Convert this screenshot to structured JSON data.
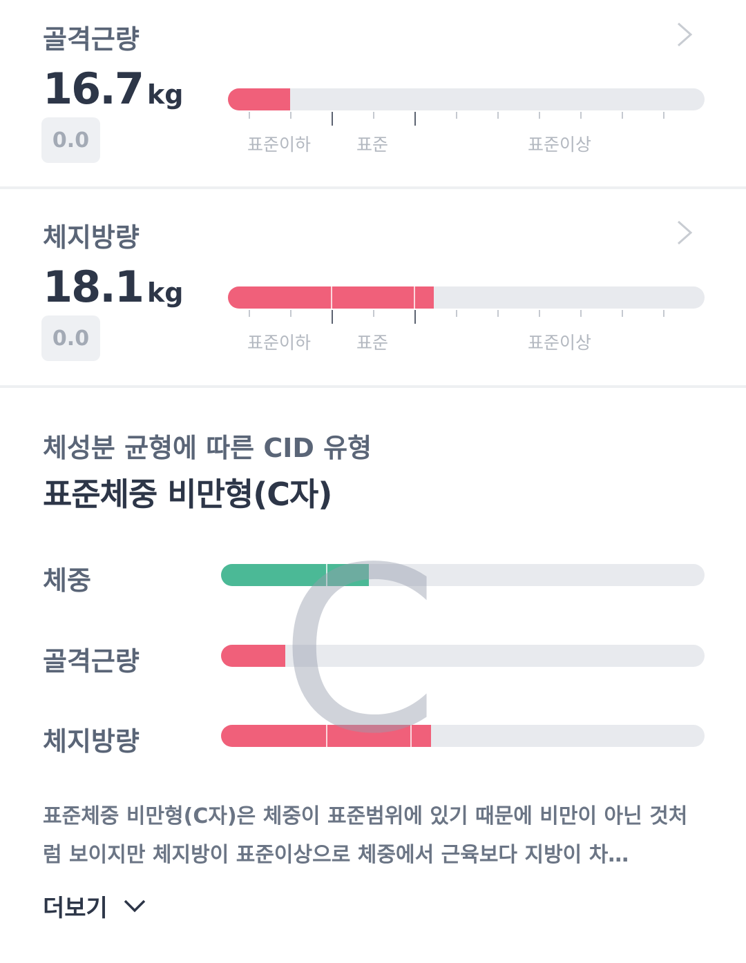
{
  "cards": [
    {
      "title": "골격근량",
      "value": "16.7",
      "unit": "kg",
      "change": "0.0",
      "scale_labels": [
        "표준이하",
        "표준",
        "표준이상"
      ]
    },
    {
      "title": "체지방량",
      "value": "18.1",
      "unit": "kg",
      "change": "0.0",
      "scale_labels": [
        "표준이하",
        "표준",
        "표준이상"
      ]
    }
  ],
  "cid": {
    "subtitle": "체성분 균형에 따른 CID 유형",
    "title": "표준체중 비만형(C자)",
    "shape_letter": "C",
    "rows": [
      "체중",
      "골격근량",
      "체지방량"
    ],
    "description": "표준체중 비만형(C자)은 체중이 표준범위에 있기 때문에 비만이 아닌 것처럼 보이지만 체지방이 표준이상으로 체중에서 근육보다 지방이 차…",
    "more": "더보기"
  }
}
